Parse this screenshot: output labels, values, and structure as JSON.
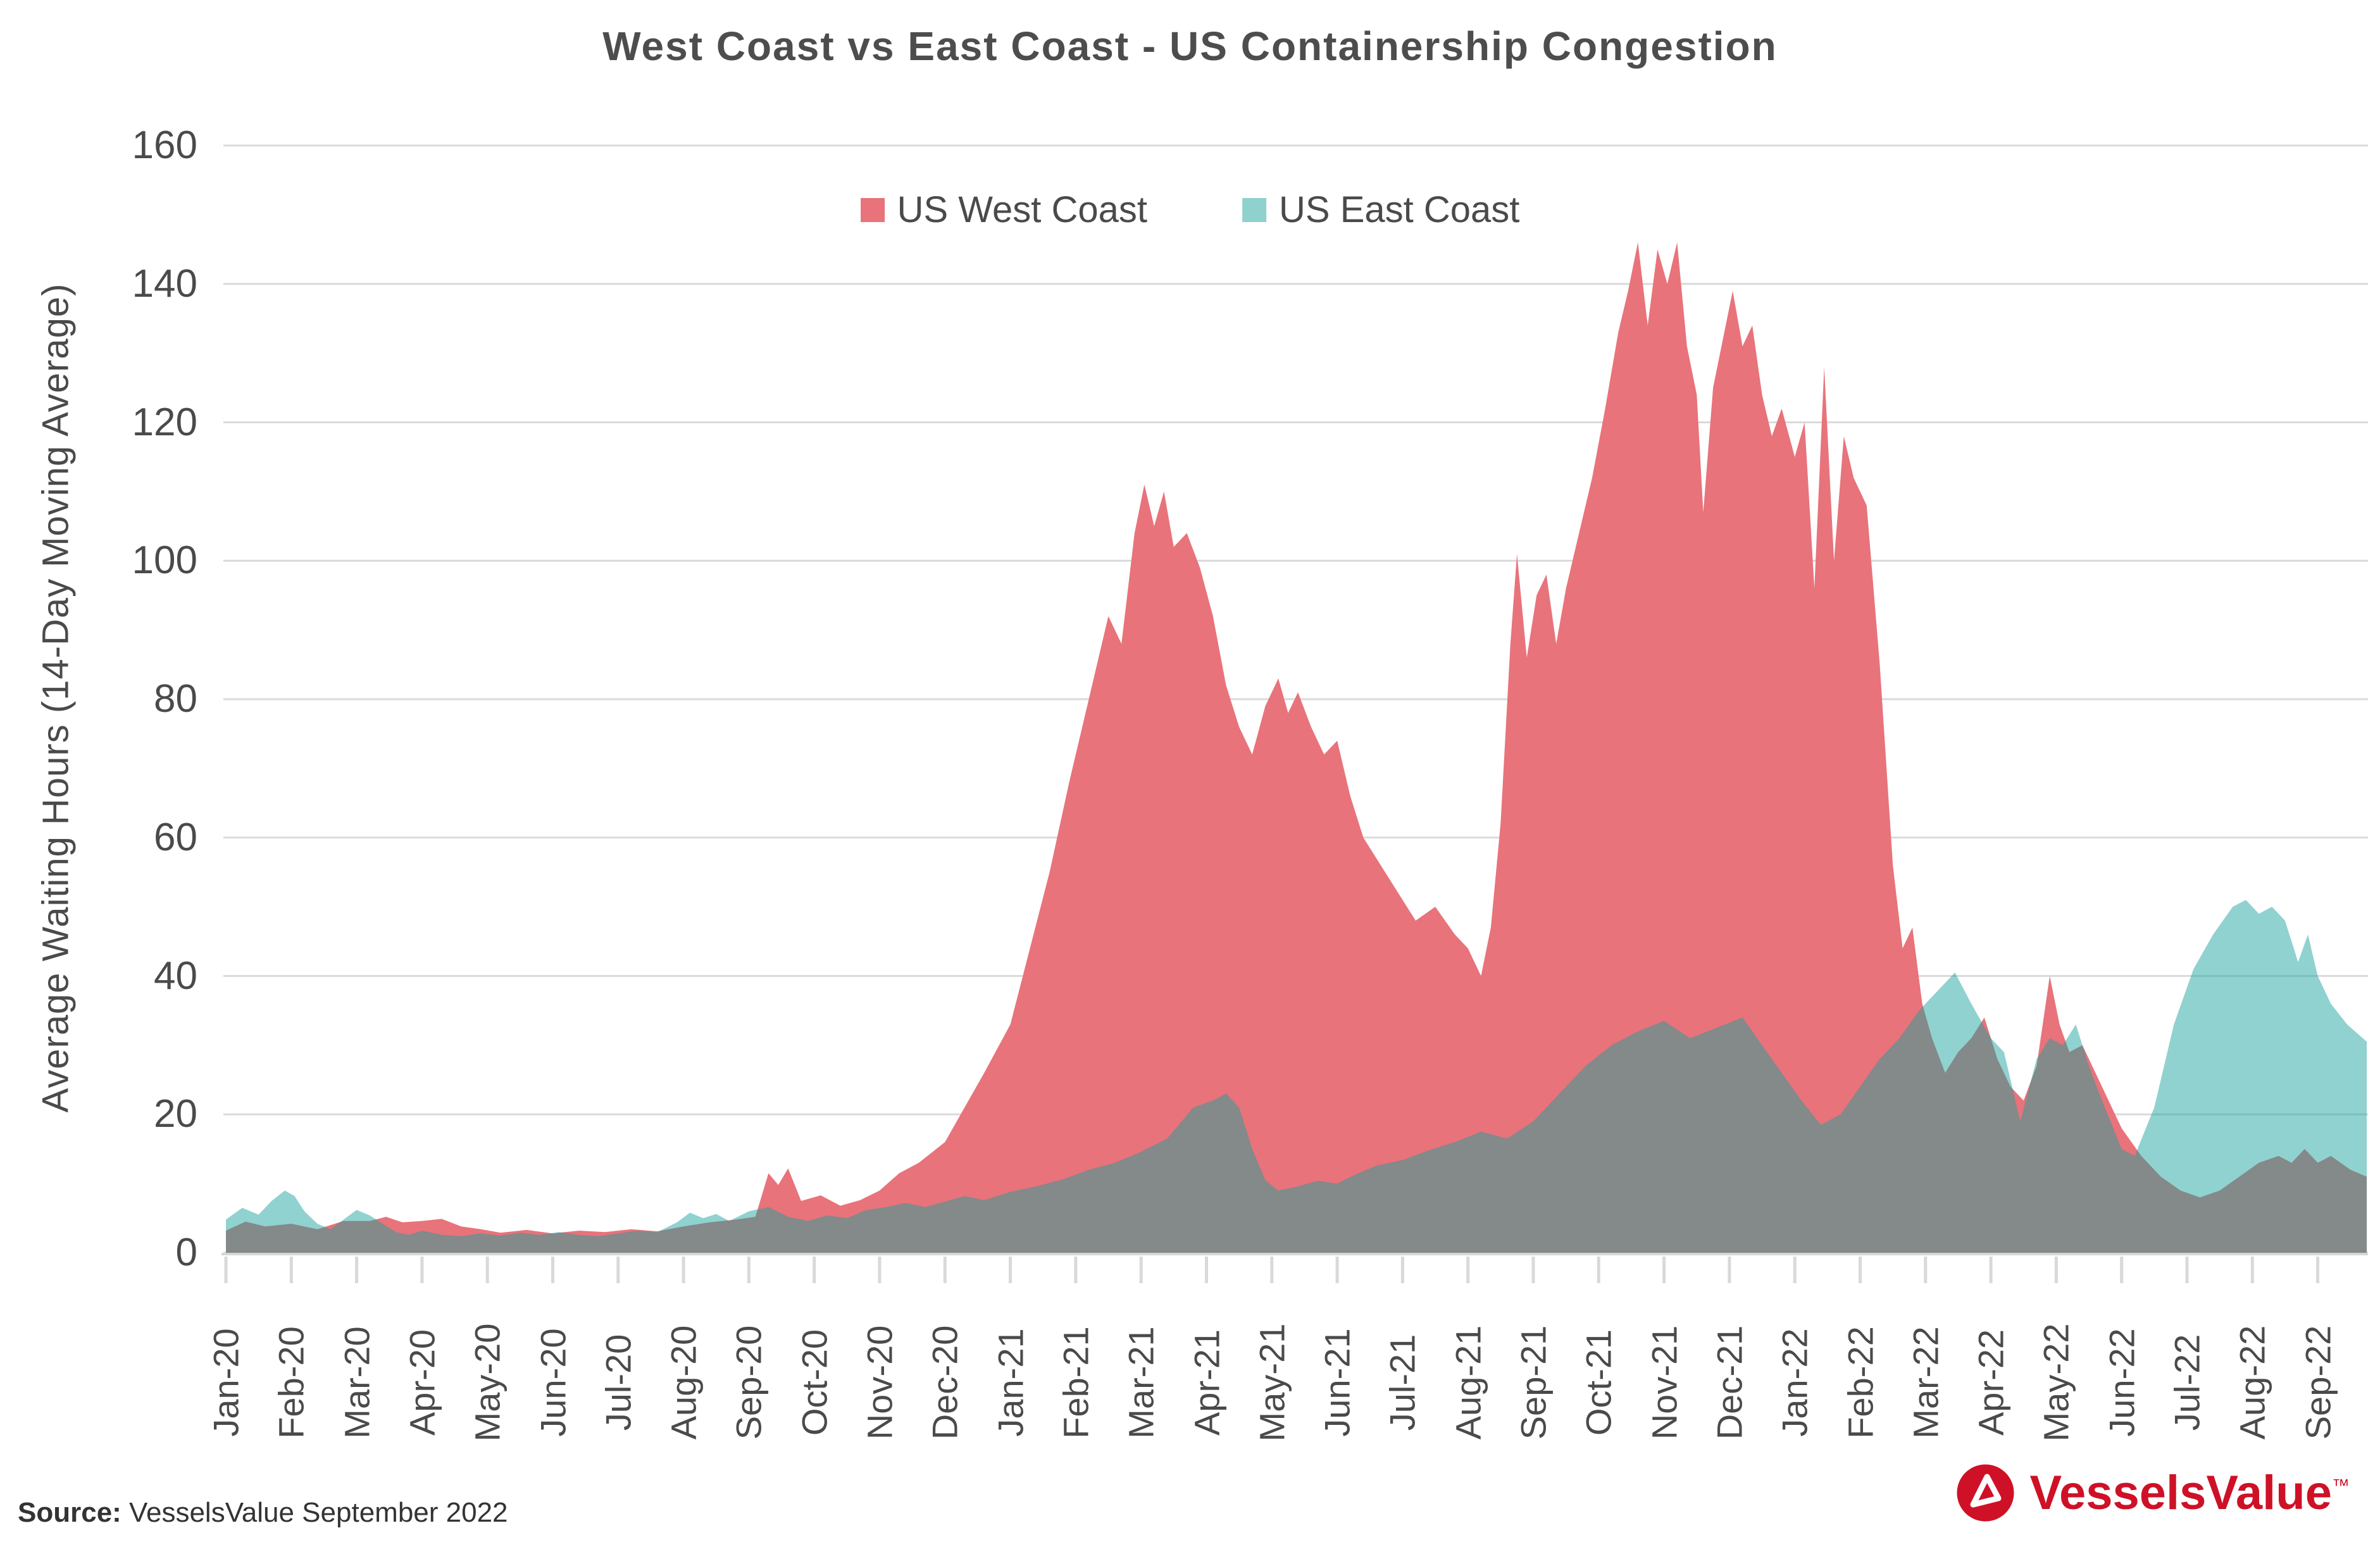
{
  "title": "West Coast vs East Coast - US Containership Congestion",
  "legend": {
    "items": [
      {
        "label": "US West Coast",
        "swatch": "#E8737B"
      },
      {
        "label": "US East Coast",
        "swatch": "#8FD1CD"
      }
    ]
  },
  "source": {
    "prefix": "Source:",
    "text": " VesselsValue September 2022"
  },
  "brand": {
    "name": "VesselsValue",
    "tm": "™",
    "color": "#CE1126"
  },
  "colors": {
    "grid": "#DADADA",
    "axis_line": "#D6D6D6",
    "tick": "#D9D9D9",
    "text": "#4A4A4A"
  },
  "chart_data": {
    "type": "area",
    "title": "West Coast vs East Coast - US Containership Congestion",
    "xlabel": "",
    "ylabel": "Average Waiting Hours (14-Day Moving Average)",
    "ylim": [
      0,
      160
    ],
    "y_ticks": [
      0,
      20,
      40,
      60,
      80,
      100,
      120,
      140,
      160
    ],
    "x_tick_labels": [
      "Jan-20",
      "Feb-20",
      "Mar-20",
      "Apr-20",
      "May-20",
      "Jun-20",
      "Jul-20",
      "Aug-20",
      "Sep-20",
      "Oct-20",
      "Nov-20",
      "Dec-20",
      "Jan-21",
      "Feb-21",
      "Mar-21",
      "Apr-21",
      "May-21",
      "Jun-21",
      "Jul-21",
      "Aug-21",
      "Sep-21",
      "Oct-21",
      "Nov-21",
      "Dec-21",
      "Jan-22",
      "Feb-22",
      "Mar-22",
      "Apr-22",
      "May-22",
      "Jun-22",
      "Jul-22",
      "Aug-22",
      "Sep-22"
    ],
    "x_unit": "months since Jan-2020, fractional",
    "grid": "horizontal",
    "legend_position": "top-center",
    "series": [
      {
        "name": "US West Coast",
        "fill": "#E8737B",
        "points": [
          [
            0,
            3.2
          ],
          [
            0.3,
            4.5
          ],
          [
            0.6,
            3.8
          ],
          [
            1,
            4.2
          ],
          [
            1.4,
            3.4
          ],
          [
            1.8,
            4.6
          ],
          [
            2.2,
            4.6
          ],
          [
            2.45,
            5.2
          ],
          [
            2.7,
            4.4
          ],
          [
            3,
            4.6
          ],
          [
            3.3,
            4.9
          ],
          [
            3.6,
            3.8
          ],
          [
            3.9,
            3.4
          ],
          [
            4.2,
            2.9
          ],
          [
            4.6,
            3.3
          ],
          [
            5,
            2.8
          ],
          [
            5.4,
            3.2
          ],
          [
            5.8,
            3
          ],
          [
            6.2,
            3.4
          ],
          [
            6.6,
            3.1
          ],
          [
            7,
            3.8
          ],
          [
            7.4,
            4.4
          ],
          [
            7.8,
            4.8
          ],
          [
            8.1,
            5.2
          ],
          [
            8.3,
            11.5
          ],
          [
            8.45,
            9.8
          ],
          [
            8.6,
            12.2
          ],
          [
            8.8,
            7.5
          ],
          [
            9.1,
            8.3
          ],
          [
            9.4,
            6.8
          ],
          [
            9.7,
            7.6
          ],
          [
            10,
            9
          ],
          [
            10.3,
            11.5
          ],
          [
            10.6,
            13
          ],
          [
            11,
            16
          ],
          [
            11.3,
            21
          ],
          [
            11.6,
            26
          ],
          [
            12,
            33
          ],
          [
            12.3,
            44
          ],
          [
            12.6,
            55
          ],
          [
            12.9,
            68
          ],
          [
            13.2,
            80
          ],
          [
            13.5,
            92
          ],
          [
            13.7,
            88
          ],
          [
            13.9,
            104
          ],
          [
            14.05,
            111
          ],
          [
            14.2,
            105
          ],
          [
            14.35,
            110
          ],
          [
            14.5,
            102
          ],
          [
            14.7,
            104
          ],
          [
            14.9,
            99
          ],
          [
            15.1,
            92
          ],
          [
            15.3,
            82
          ],
          [
            15.5,
            76
          ],
          [
            15.7,
            72
          ],
          [
            15.9,
            79
          ],
          [
            16.1,
            83
          ],
          [
            16.25,
            78
          ],
          [
            16.4,
            81
          ],
          [
            16.6,
            76
          ],
          [
            16.8,
            72
          ],
          [
            17,
            74
          ],
          [
            17.2,
            66
          ],
          [
            17.4,
            60
          ],
          [
            17.6,
            57
          ],
          [
            17.8,
            54
          ],
          [
            18,
            51
          ],
          [
            18.2,
            48
          ],
          [
            18.5,
            50
          ],
          [
            18.8,
            46
          ],
          [
            19,
            44
          ],
          [
            19.2,
            40
          ],
          [
            19.35,
            47
          ],
          [
            19.5,
            62
          ],
          [
            19.65,
            88
          ],
          [
            19.75,
            101
          ],
          [
            19.9,
            86
          ],
          [
            20.05,
            95
          ],
          [
            20.2,
            98
          ],
          [
            20.35,
            88
          ],
          [
            20.5,
            96
          ],
          [
            20.7,
            104
          ],
          [
            20.9,
            112
          ],
          [
            21.1,
            122
          ],
          [
            21.3,
            133
          ],
          [
            21.45,
            139
          ],
          [
            21.6,
            146
          ],
          [
            21.75,
            134
          ],
          [
            21.9,
            145
          ],
          [
            22.05,
            140
          ],
          [
            22.2,
            146
          ],
          [
            22.35,
            131
          ],
          [
            22.5,
            124
          ],
          [
            22.6,
            107
          ],
          [
            22.75,
            125
          ],
          [
            22.9,
            132
          ],
          [
            23.05,
            139
          ],
          [
            23.2,
            131
          ],
          [
            23.35,
            134
          ],
          [
            23.5,
            124
          ],
          [
            23.65,
            118
          ],
          [
            23.8,
            122
          ],
          [
            24,
            115
          ],
          [
            24.15,
            120
          ],
          [
            24.3,
            96
          ],
          [
            24.45,
            128
          ],
          [
            24.6,
            100
          ],
          [
            24.75,
            118
          ],
          [
            24.9,
            112
          ],
          [
            25.1,
            108
          ],
          [
            25.3,
            85
          ],
          [
            25.5,
            56
          ],
          [
            25.65,
            44
          ],
          [
            25.8,
            47
          ],
          [
            25.95,
            36
          ],
          [
            26.1,
            31
          ],
          [
            26.3,
            26
          ],
          [
            26.5,
            29
          ],
          [
            26.7,
            31
          ],
          [
            26.9,
            34
          ],
          [
            27.1,
            28
          ],
          [
            27.3,
            24
          ],
          [
            27.5,
            22
          ],
          [
            27.7,
            27
          ],
          [
            27.9,
            40
          ],
          [
            28.05,
            33
          ],
          [
            28.2,
            29
          ],
          [
            28.4,
            30
          ],
          [
            28.6,
            26
          ],
          [
            28.8,
            22
          ],
          [
            29,
            18
          ],
          [
            29.3,
            14
          ],
          [
            29.6,
            11
          ],
          [
            29.9,
            9
          ],
          [
            30.2,
            8
          ],
          [
            30.5,
            9
          ],
          [
            30.8,
            11
          ],
          [
            31.1,
            13
          ],
          [
            31.4,
            14
          ],
          [
            31.6,
            13
          ],
          [
            31.8,
            15
          ],
          [
            32,
            13
          ],
          [
            32.2,
            14
          ],
          [
            32.5,
            12
          ],
          [
            32.75,
            11
          ]
        ]
      },
      {
        "name": "US East Coast",
        "fill": "rgba(22,160,154,0.48)",
        "points": [
          [
            0,
            4.8
          ],
          [
            0.25,
            6.5
          ],
          [
            0.5,
            5.5
          ],
          [
            0.7,
            7.5
          ],
          [
            0.9,
            9
          ],
          [
            1.05,
            8.2
          ],
          [
            1.2,
            6
          ],
          [
            1.4,
            4.2
          ],
          [
            1.6,
            3.4
          ],
          [
            1.8,
            4.8
          ],
          [
            2,
            6.2
          ],
          [
            2.2,
            5.4
          ],
          [
            2.4,
            4.2
          ],
          [
            2.6,
            3
          ],
          [
            2.8,
            2.6
          ],
          [
            3,
            3.2
          ],
          [
            3.3,
            2.6
          ],
          [
            3.6,
            2.4
          ],
          [
            3.9,
            2.8
          ],
          [
            4.2,
            2.5
          ],
          [
            4.5,
            2.9
          ],
          [
            4.8,
            2.6
          ],
          [
            5.1,
            3
          ],
          [
            5.4,
            2.6
          ],
          [
            5.7,
            2.4
          ],
          [
            6,
            2.8
          ],
          [
            6.3,
            3.2
          ],
          [
            6.6,
            3
          ],
          [
            6.9,
            4.4
          ],
          [
            7.1,
            5.8
          ],
          [
            7.3,
            5
          ],
          [
            7.5,
            5.6
          ],
          [
            7.7,
            4.6
          ],
          [
            8,
            6
          ],
          [
            8.3,
            6.6
          ],
          [
            8.6,
            5.2
          ],
          [
            8.9,
            4.6
          ],
          [
            9.2,
            5.4
          ],
          [
            9.5,
            5
          ],
          [
            9.8,
            6.2
          ],
          [
            10.1,
            6.6
          ],
          [
            10.4,
            7.2
          ],
          [
            10.7,
            6.6
          ],
          [
            11,
            7.4
          ],
          [
            11.3,
            8.2
          ],
          [
            11.6,
            7.6
          ],
          [
            12,
            8.8
          ],
          [
            12.4,
            9.6
          ],
          [
            12.8,
            10.6
          ],
          [
            13.2,
            12
          ],
          [
            13.6,
            13
          ],
          [
            14,
            14.6
          ],
          [
            14.4,
            16.5
          ],
          [
            14.8,
            21
          ],
          [
            15.1,
            22
          ],
          [
            15.3,
            23
          ],
          [
            15.5,
            21
          ],
          [
            15.7,
            15
          ],
          [
            15.9,
            10.5
          ],
          [
            16.1,
            9
          ],
          [
            16.4,
            9.6
          ],
          [
            16.7,
            10.4
          ],
          [
            17,
            10
          ],
          [
            17.3,
            11.4
          ],
          [
            17.6,
            12.6
          ],
          [
            18,
            13.4
          ],
          [
            18.4,
            14.8
          ],
          [
            18.8,
            16
          ],
          [
            19.2,
            17.5
          ],
          [
            19.6,
            16.5
          ],
          [
            20,
            19
          ],
          [
            20.4,
            23
          ],
          [
            20.8,
            27
          ],
          [
            21.2,
            30
          ],
          [
            21.6,
            32
          ],
          [
            22,
            33.5
          ],
          [
            22.4,
            31
          ],
          [
            22.8,
            32.5
          ],
          [
            23.2,
            34
          ],
          [
            23.5,
            30
          ],
          [
            23.8,
            26
          ],
          [
            24.1,
            22
          ],
          [
            24.4,
            18.5
          ],
          [
            24.7,
            20
          ],
          [
            25,
            24
          ],
          [
            25.3,
            28
          ],
          [
            25.6,
            31
          ],
          [
            25.9,
            35
          ],
          [
            26.2,
            38
          ],
          [
            26.45,
            40.5
          ],
          [
            26.7,
            36
          ],
          [
            27,
            31
          ],
          [
            27.2,
            29
          ],
          [
            27.45,
            19
          ],
          [
            27.7,
            28
          ],
          [
            27.9,
            31
          ],
          [
            28.1,
            30
          ],
          [
            28.3,
            33
          ],
          [
            28.5,
            27
          ],
          [
            28.7,
            22
          ],
          [
            29,
            15
          ],
          [
            29.2,
            14
          ],
          [
            29.5,
            21
          ],
          [
            29.8,
            33
          ],
          [
            30.1,
            41
          ],
          [
            30.4,
            46
          ],
          [
            30.7,
            50
          ],
          [
            30.9,
            51
          ],
          [
            31.1,
            49
          ],
          [
            31.3,
            50
          ],
          [
            31.5,
            48
          ],
          [
            31.7,
            42
          ],
          [
            31.85,
            46
          ],
          [
            32,
            40
          ],
          [
            32.2,
            36
          ],
          [
            32.45,
            33
          ],
          [
            32.75,
            30.5
          ]
        ]
      }
    ]
  }
}
